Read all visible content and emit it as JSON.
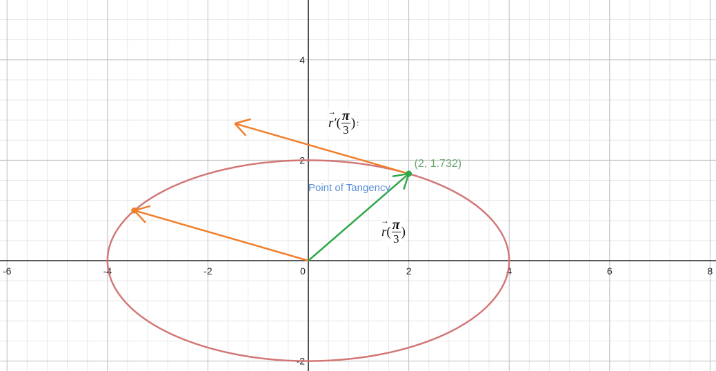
{
  "axes": {
    "x_ticks": [
      "-6",
      "-4",
      "-2",
      "0",
      "2",
      "4",
      "6",
      "8"
    ],
    "y_ticks": [
      "4",
      "2",
      "-2"
    ],
    "x_range": [
      -6.1,
      8.2
    ],
    "y_range": [
      -2.1,
      5.2
    ]
  },
  "colors": {
    "ellipse": "#d07070",
    "derivative_vector": "#f07f2a",
    "position_vector": "#2ea84a",
    "point_label": "#6aa56f",
    "tangency_label": "#5b8fd6"
  },
  "ellipse": {
    "a": 4,
    "b": 2
  },
  "point": {
    "x": 2,
    "y": 1.732,
    "label": "(2, 1.732)"
  },
  "tangency_label": "Point of Tangency",
  "position_vector": {
    "from": [
      0,
      0
    ],
    "to": [
      2,
      1.732
    ]
  },
  "derivative_vector": {
    "from": [
      2,
      1.732
    ],
    "to": [
      -1.464,
      2.732
    ]
  },
  "derivative_translated": {
    "from": [
      0,
      0
    ],
    "to": [
      -3.464,
      1.0
    ]
  },
  "label_r": {
    "func": "r",
    "num": "π",
    "den": "3"
  },
  "label_rprime": {
    "func": "r",
    "prime": "′",
    "num": "π",
    "den": "3",
    "suffix": ":"
  }
}
